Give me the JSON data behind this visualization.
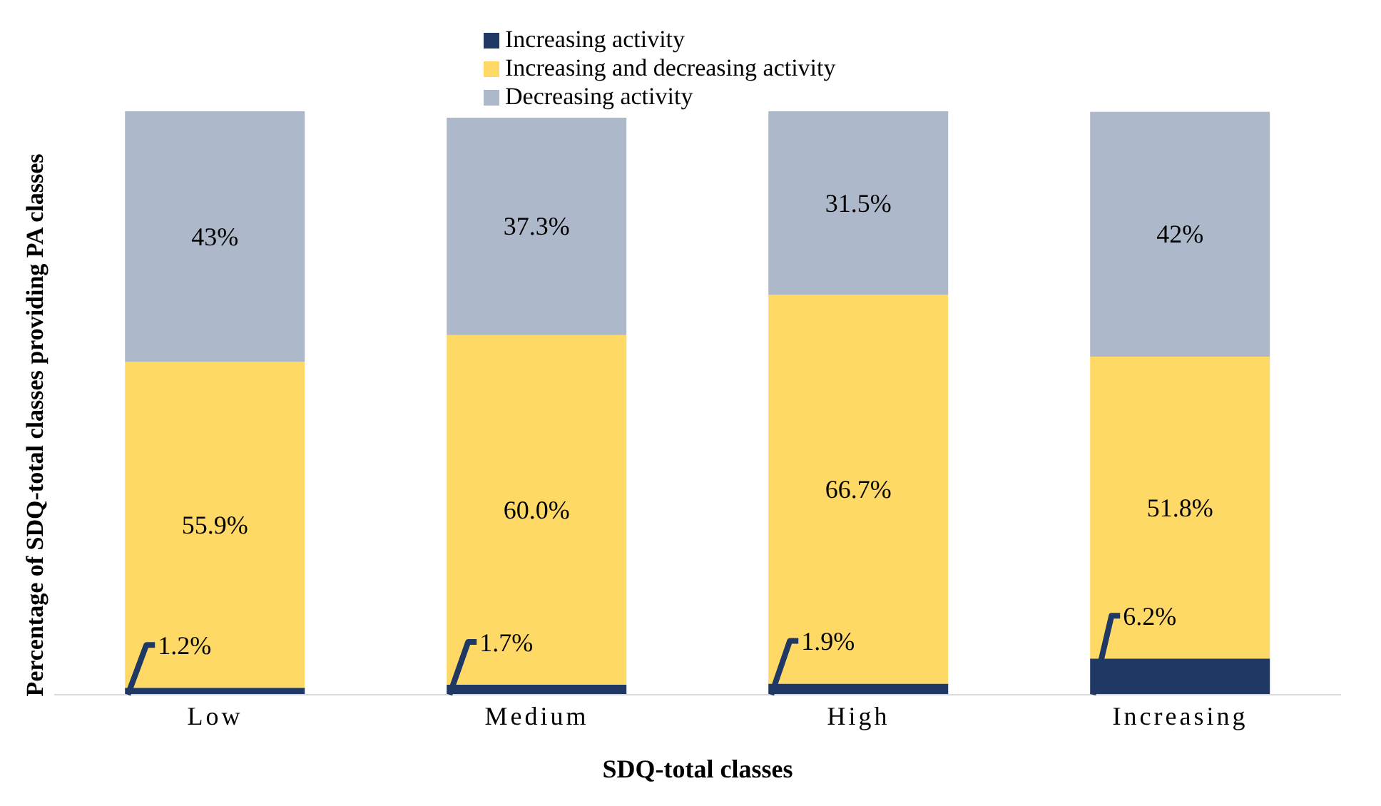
{
  "chart_data": {
    "type": "bar",
    "stacked": true,
    "xlabel": "SDQ-total classes",
    "ylabel": "Percentage of SDQ-total classes providing PA classes",
    "categories": [
      "Low",
      "Medium",
      "High",
      "Increasing"
    ],
    "legend": "top",
    "series": [
      {
        "name": "Increasing activity",
        "color": "#1f3864",
        "values": [
          1.2,
          1.7,
          1.9,
          6.2
        ],
        "value_labels": [
          "1.2%",
          "1.7%",
          "1.9%",
          "6.2%"
        ]
      },
      {
        "name": "Increasing and decreasing activity",
        "color": "#ffd966",
        "values": [
          55.9,
          60.0,
          66.7,
          51.8
        ],
        "value_labels": [
          "55.9%",
          "60.0%",
          "66.7%",
          "51.8%"
        ]
      },
      {
        "name": "Decreasing activity",
        "color": "#adb9ca",
        "values": [
          43,
          37.3,
          31.5,
          42
        ],
        "value_labels": [
          "43%",
          "37.3%",
          "31.5%",
          "42%"
        ]
      }
    ]
  }
}
